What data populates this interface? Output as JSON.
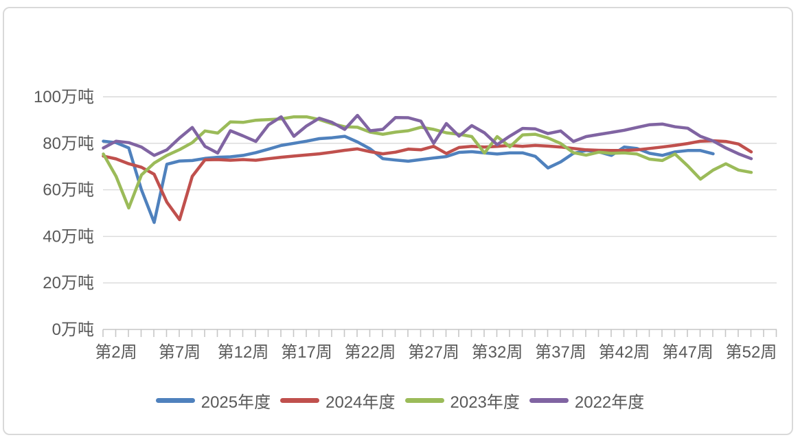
{
  "chart_data": {
    "type": "line",
    "title": "",
    "unit": "万吨",
    "grid": "horizontal",
    "legend_position": "bottom",
    "y_axis": {
      "min": 0,
      "max": 100,
      "step": 20,
      "tick_labels": [
        "0万吨",
        "20万吨",
        "40万吨",
        "60万吨",
        "80万吨",
        "100万吨"
      ]
    },
    "x_axis": {
      "weeks_total": 52,
      "tick_label_weeks": [
        2,
        7,
        12,
        17,
        22,
        27,
        32,
        37,
        42,
        47,
        52
      ],
      "tick_labels": [
        "第2周",
        "第7周",
        "第12周",
        "第17周",
        "第22周",
        "第27周",
        "第32周",
        "第37周",
        "第42周",
        "第47周",
        "第52周"
      ]
    },
    "series": [
      {
        "name": "2025年度",
        "color": "#4F81BD",
        "values": [
          80.9,
          80.3,
          78,
          60,
          46,
          71,
          72.4,
          72.6,
          73.5,
          74,
          74.2,
          74.8,
          76,
          77.5,
          79.1,
          80,
          80.9,
          82,
          82.4,
          83,
          80.6,
          77.6,
          73.4,
          72.8,
          72.3,
          73,
          73.7,
          74.3,
          76.1,
          76.4,
          75.9,
          75.4,
          75.9,
          75.9,
          74.4,
          69.4,
          72,
          75.7,
          76.9,
          76.3,
          74.8,
          78.4,
          77.8,
          75.7,
          74.8,
          76.3,
          76.9,
          76.9,
          75.5
        ]
      },
      {
        "name": "2024年度",
        "color": "#C0504D",
        "values": [
          74.5,
          73.3,
          71.2,
          69.7,
          66.7,
          54.7,
          47.2,
          65.8,
          72.9,
          73,
          72.7,
          73,
          72.7,
          73.4,
          74,
          74.5,
          75,
          75.5,
          76.2,
          77,
          77.6,
          76.4,
          75.5,
          76.2,
          77.5,
          77.2,
          78.7,
          75.6,
          78.2,
          78.7,
          78.4,
          78.7,
          79.1,
          78.7,
          79.1,
          78.8,
          78.4,
          77.8,
          77.2,
          77,
          76.9,
          76.9,
          77.2,
          77.8,
          78.4,
          79.1,
          79.9,
          80.9,
          81.1,
          80.8,
          79.7,
          76.3
        ]
      },
      {
        "name": "2023年度",
        "color": "#9BBB59",
        "values": [
          75.4,
          65.8,
          52.2,
          66.4,
          71.5,
          74.8,
          77.3,
          80.3,
          85.3,
          84.4,
          89.2,
          89,
          89.9,
          90.2,
          90.5,
          91.4,
          91.4,
          90.2,
          88.4,
          87.1,
          86.9,
          84.8,
          83.9,
          84.8,
          85.4,
          86.9,
          86,
          84.5,
          83.9,
          82.9,
          75.8,
          82.9,
          78.5,
          83.6,
          83.9,
          82.3,
          79.9,
          76,
          74.9,
          76.2,
          75.7,
          75.9,
          75.4,
          73.2,
          72.6,
          75.4,
          70.3,
          64.6,
          68.5,
          71.2,
          68.5,
          67.5
        ]
      },
      {
        "name": "2022年度",
        "color": "#8064A2",
        "values": [
          78,
          80.9,
          80.3,
          78.4,
          74.8,
          77.2,
          82.3,
          86.8,
          78.7,
          75.8,
          85.4,
          83.2,
          80.8,
          87.9,
          91.4,
          83,
          87.5,
          90.8,
          89,
          86,
          92,
          85.4,
          86,
          91.1,
          91,
          89.5,
          80,
          88.5,
          83.1,
          87.6,
          84.5,
          79.4,
          83.1,
          86.4,
          86.2,
          84.2,
          85.3,
          80.8,
          82.9,
          83.8,
          84.7,
          85.6,
          86.8,
          88,
          88.3,
          87.1,
          86.5,
          83,
          81,
          78,
          75.5,
          73.4
        ]
      }
    ],
    "style": {
      "grid_color": "#D9D9D9",
      "axis_color": "#C6C6C6",
      "text_color": "#595959",
      "frame_color": "#D9D9D9",
      "line_width": 4.5
    }
  }
}
